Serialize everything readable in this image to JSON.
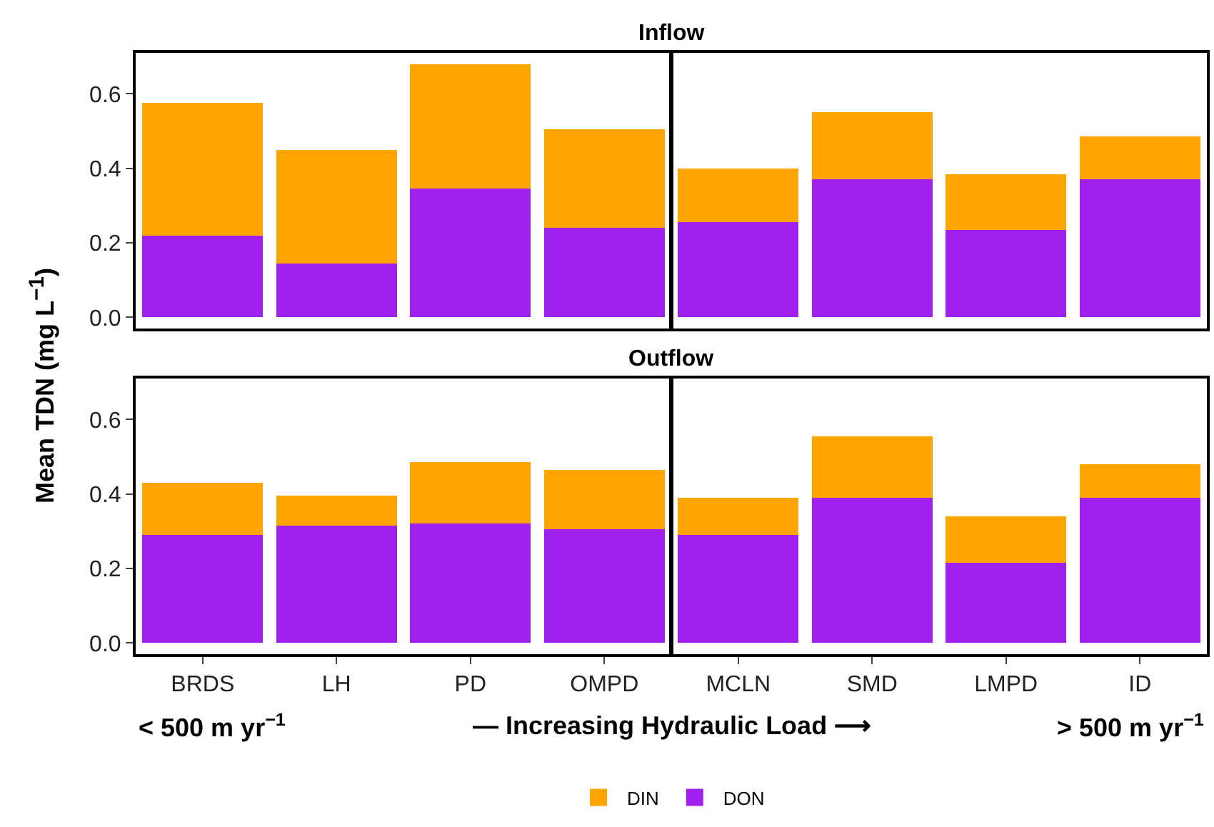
{
  "chart_data": [
    {
      "type": "bar",
      "title": "Inflow",
      "ylabel": "Mean TDN (mg L$^{−1}$)",
      "categories": [
        null,
        null,
        null,
        null,
        null,
        null,
        null,
        null
      ],
      "stacked": true,
      "series": [
        {
          "color": "#a020f0",
          "values": [
            0.22,
            0.145,
            0.345,
            0.24,
            0.255,
            0.37,
            0.235,
            0.37
          ]
        },
        {
          "color": "#ffa500",
          "values": [
            0.355,
            0.305,
            0.335,
            0.265,
            0.145,
            0.18,
            0.15,
            0.115
          ]
        }
      ],
      "ylim": [
        -0.03,
        0.71
      ],
      "yticks": [
        {
          "value": 0,
          "label": "0.0"
        },
        {
          "value": 0.2,
          "label": "0.2"
        },
        {
          "value": 0.4,
          "label": "0.4"
        },
        {
          "value": 0.6,
          "label": "0.6"
        }
      ],
      "grid": false,
      "legend": false,
      "tick_labels": "y"
    },
    {
      "type": "bar",
      "title": "Outflow",
      "categories": [
        "BRDS",
        "LH",
        "PD",
        "OMPD",
        "MCLN",
        "SMD",
        "LMPD",
        "ID"
      ],
      "stacked": true,
      "series": [
        {
          "name": "DON",
          "color": "#a020f0",
          "values": [
            0.29,
            0.315,
            0.32,
            0.305,
            0.29,
            0.39,
            0.215,
            0.39
          ]
        },
        {
          "name": "DIN",
          "color": "#ffa500",
          "values": [
            0.14,
            0.08,
            0.165,
            0.16,
            0.1,
            0.165,
            0.125,
            0.09
          ]
        }
      ],
      "ylim": [
        -0.03,
        0.71
      ],
      "yticks": [
        {
          "value": 0,
          "label": "0.0"
        },
        {
          "value": 0.2,
          "label": "0.2"
        },
        {
          "value": 0.4,
          "label": "0.4"
        },
        {
          "value": 0.6,
          "label": "0.6"
        }
      ],
      "grid": false,
      "legend": "bottom",
      "annotations": [
        "< 500 m yr$^{−1}$",
        "— Increasing Hydraulic Load ⟶",
        "> 500 m yr$^{−1}$"
      ]
    }
  ]
}
